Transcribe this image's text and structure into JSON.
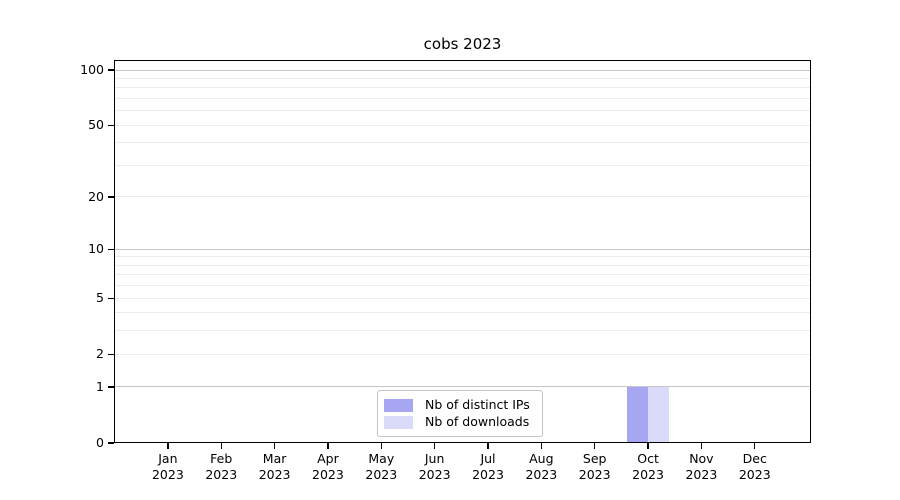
{
  "title": "cobs 2023",
  "chart_data": {
    "type": "bar",
    "title": "cobs 2023",
    "categories": [
      "Jan",
      "Feb",
      "Mar",
      "Apr",
      "May",
      "Jun",
      "Jul",
      "Aug",
      "Sep",
      "Oct",
      "Nov",
      "Dec"
    ],
    "category_year": "2023",
    "series": [
      {
        "name": "Nb of distinct IPs",
        "color": "#a6a6f2",
        "values": [
          0,
          0,
          0,
          0,
          0,
          0,
          0,
          0,
          0,
          1,
          0,
          0
        ]
      },
      {
        "name": "Nb of downloads",
        "color": "#dadaf9",
        "values": [
          0,
          0,
          0,
          0,
          0,
          0,
          0,
          0,
          0,
          1,
          0,
          0
        ]
      }
    ],
    "xlabel": "",
    "ylabel": "",
    "y_scale": "log1p",
    "y_ticks": [
      0,
      1,
      2,
      5,
      10,
      20,
      50,
      100
    ],
    "y_major_gridlines": [
      1,
      10,
      100
    ],
    "y_minor_gridlines": [
      2,
      3,
      4,
      5,
      6,
      7,
      8,
      9,
      20,
      30,
      40,
      50,
      60,
      70,
      80,
      90
    ],
    "ylim": [
      0,
      113
    ],
    "grid": "horizontal",
    "legend_position": "lower center"
  },
  "colors": {
    "bar_distinct_ips": "#a6a6f2",
    "bar_downloads": "#dadaf9",
    "major_gridline": "#c6c6c6",
    "minor_gridline": "#ececec",
    "spine": "#000000",
    "legend_border": "#c4c4c4",
    "text": "#000000"
  }
}
